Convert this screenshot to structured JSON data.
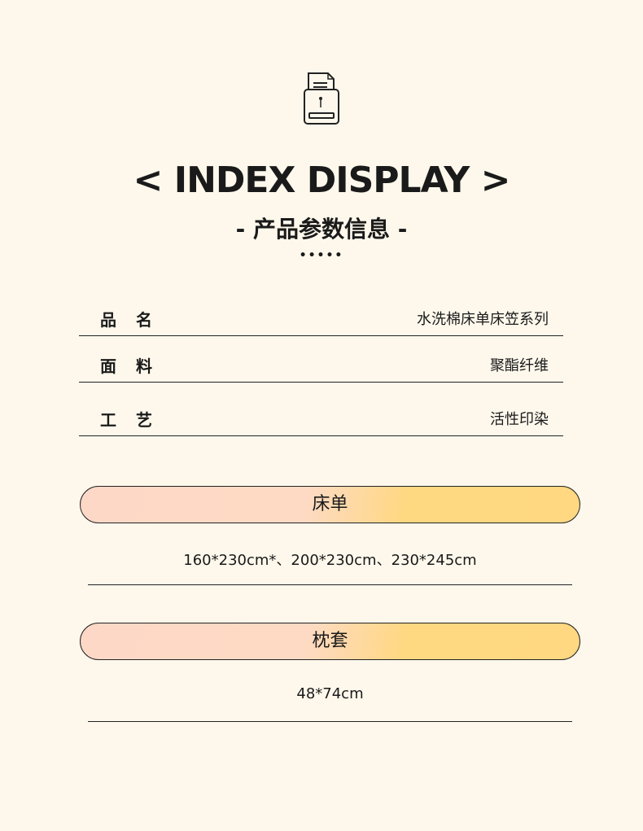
{
  "header": {
    "icon": "document-box-icon",
    "title": "< INDEX DISPLAY >",
    "subtitle": "- 产品参数信息 -",
    "dots": "•••••"
  },
  "params": [
    {
      "label": "品名",
      "value": "水洗棉床单床笠系列"
    },
    {
      "label": "面料",
      "value": "聚酯纤维"
    },
    {
      "label": "工艺",
      "value": "活性印染"
    }
  ],
  "sections": [
    {
      "title": "床单",
      "sizes": "160*230cm*、200*230cm、230*245cm"
    },
    {
      "title": "枕套",
      "sizes": "48*74cm"
    }
  ]
}
